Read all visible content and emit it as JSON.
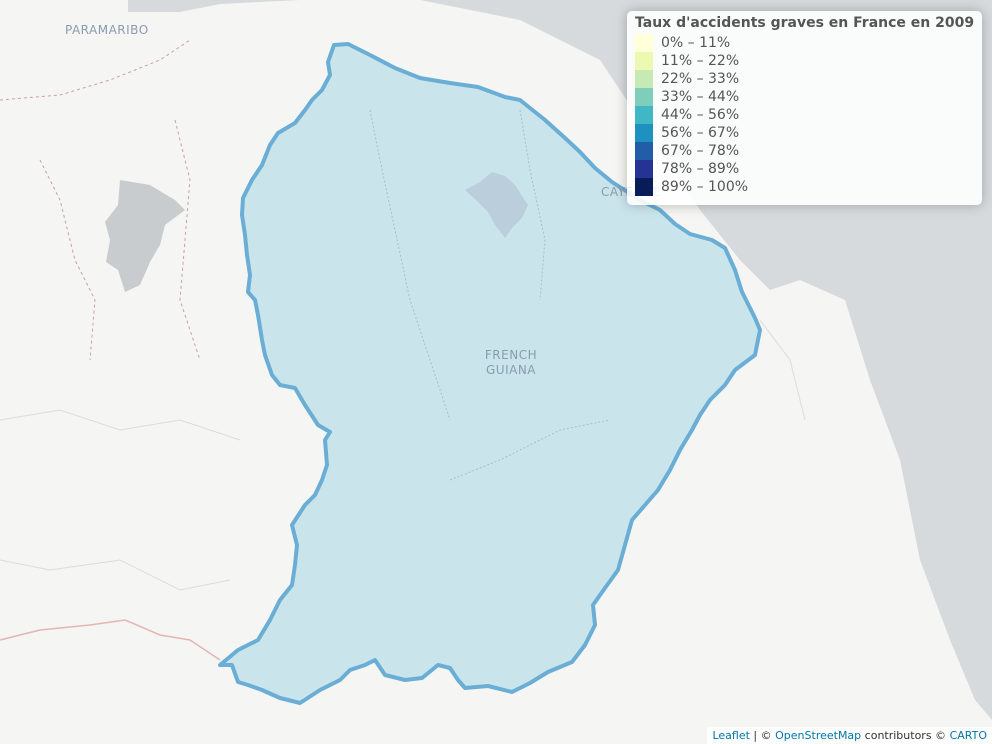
{
  "map": {
    "labels": {
      "paramaribo": "PARAMARIBO",
      "cayenne": "CAYENNE",
      "french_guiana_line1": "FRENCH",
      "french_guiana_line2": "GUIANA"
    },
    "region_fill_color": "#add8e6",
    "region_border_color": "#6aaed6"
  },
  "legend": {
    "title": "Taux d'accidents graves en France en 2009",
    "items": [
      {
        "label": "0% – 11%",
        "color": "#ffffd9"
      },
      {
        "label": "11% – 22%",
        "color": "#edf8b1"
      },
      {
        "label": "22% – 33%",
        "color": "#c7e9b4"
      },
      {
        "label": "33% – 44%",
        "color": "#7fcdbb"
      },
      {
        "label": "44% – 56%",
        "color": "#41b6c4"
      },
      {
        "label": "56% – 67%",
        "color": "#1d91c0"
      },
      {
        "label": "67% – 78%",
        "color": "#225ea8"
      },
      {
        "label": "78% – 89%",
        "color": "#253494"
      },
      {
        "label": "89% – 100%",
        "color": "#081d58"
      }
    ]
  },
  "attribution": {
    "leaflet": "Leaflet",
    "separator": " | © ",
    "osm": "OpenStreetMap",
    "contributors": " contributors © ",
    "carto": "CARTO"
  }
}
